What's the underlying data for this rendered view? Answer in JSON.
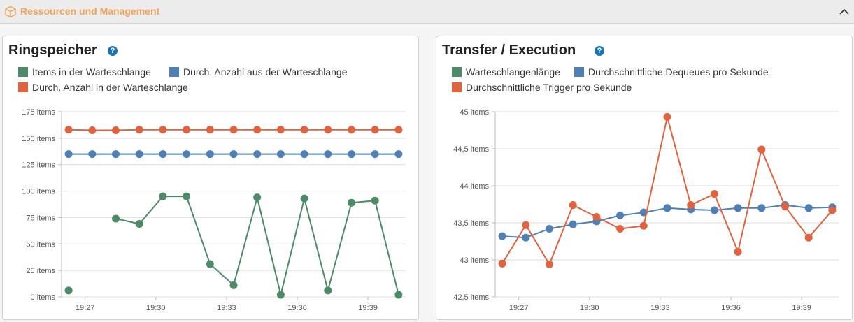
{
  "section": {
    "title": "Ressourcen und Management",
    "icon": "box-icon",
    "toggle_icon": "chevron-up-icon"
  },
  "panels": [
    {
      "title": "Ringspeicher",
      "help_label": "?",
      "legend": [
        {
          "label": "Items in der Warteschlange",
          "color": "#4d8a67"
        },
        {
          "label": "Durch. Anzahl aus der Warteschlange",
          "color": "#4e7fb5"
        },
        {
          "label": "Durch. Anzahl in der Warteschlange",
          "color": "#e0623f"
        }
      ]
    },
    {
      "title": "Transfer / Execution",
      "help_label": "?",
      "legend": [
        {
          "label": "Warteschlangenlänge",
          "color": "#4d8a67"
        },
        {
          "label": "Durchschnittliche Dequeues pro Sekunde",
          "color": "#4e7fb5"
        },
        {
          "label": "Durchschnittliche Trigger pro Sekunde",
          "color": "#e0623f"
        }
      ]
    }
  ],
  "chart_data": [
    {
      "type": "line",
      "title": "Ringspeicher",
      "y_ticks": [
        0,
        25,
        50,
        75,
        100,
        125,
        150,
        175
      ],
      "y_tick_labels": [
        "0 items",
        "25 items",
        "50 items",
        "75 items",
        "100 items",
        "125 items",
        "150 items",
        "175 items"
      ],
      "ylim": [
        0,
        175
      ],
      "x_tick_labels": [
        "19:27",
        "19:30",
        "19:33",
        "19:36",
        "19:39"
      ],
      "x_ticks_minutes": [
        27,
        30,
        33,
        36,
        39
      ],
      "x_minutes": [
        26.3,
        27.3,
        28.3,
        29.3,
        30.3,
        31.3,
        32.3,
        33.3,
        34.3,
        35.3,
        36.3,
        37.3,
        38.3,
        39.3,
        40.3
      ],
      "xlim": [
        26.0,
        40.6
      ],
      "grid": true,
      "series": [
        {
          "name": "Items in der Warteschlange",
          "color": "#4d8a67",
          "values": [
            6,
            null,
            74,
            69,
            95,
            95,
            31,
            11,
            94,
            2,
            93,
            6,
            89,
            91,
            2
          ]
        },
        {
          "name": "Durch. Anzahl aus der Warteschlange",
          "color": "#4e7fb5",
          "values": [
            135,
            135,
            135,
            135,
            135,
            135,
            135,
            135,
            135,
            135,
            135,
            135,
            135,
            135,
            135
          ]
        },
        {
          "name": "Durch. Anzahl in der Warteschlange",
          "color": "#e0623f",
          "values": [
            158,
            157.5,
            157.5,
            158,
            158,
            158,
            158,
            158,
            158,
            158,
            158,
            158,
            158,
            158,
            158
          ]
        }
      ]
    },
    {
      "type": "line",
      "title": "Transfer / Execution",
      "y_ticks": [
        42.5,
        43,
        43.5,
        44,
        44.5,
        45
      ],
      "y_tick_labels": [
        "42,5 items",
        "43 items",
        "43,5 items",
        "44 items",
        "44,5 items",
        "45 items"
      ],
      "ylim": [
        42.5,
        45
      ],
      "x_tick_labels": [
        "19:27",
        "19:30",
        "19:33",
        "19:36",
        "19:39"
      ],
      "x_ticks_minutes": [
        27,
        30,
        33,
        36,
        39
      ],
      "x_minutes": [
        26.3,
        27.3,
        28.3,
        29.3,
        30.3,
        31.3,
        32.3,
        33.3,
        34.3,
        35.3,
        36.3,
        37.3,
        38.3,
        39.3,
        40.3
      ],
      "xlim": [
        26.0,
        40.6
      ],
      "grid": true,
      "series": [
        {
          "name": "Warteschlangenlänge",
          "color": "#4d8a67",
          "values": []
        },
        {
          "name": "Durchschnittliche Dequeues pro Sekunde",
          "color": "#4e7fb5",
          "values": [
            43.32,
            43.3,
            43.42,
            43.48,
            43.52,
            43.6,
            43.64,
            43.7,
            43.68,
            43.67,
            43.7,
            43.7,
            43.74,
            43.7,
            43.71
          ]
        },
        {
          "name": "Durchschnittliche Trigger pro Sekunde",
          "color": "#e0623f",
          "values": [
            42.95,
            43.47,
            42.94,
            43.74,
            43.58,
            43.42,
            43.46,
            44.93,
            43.74,
            43.89,
            43.11,
            44.49,
            43.72,
            43.3,
            43.67
          ]
        }
      ]
    }
  ]
}
